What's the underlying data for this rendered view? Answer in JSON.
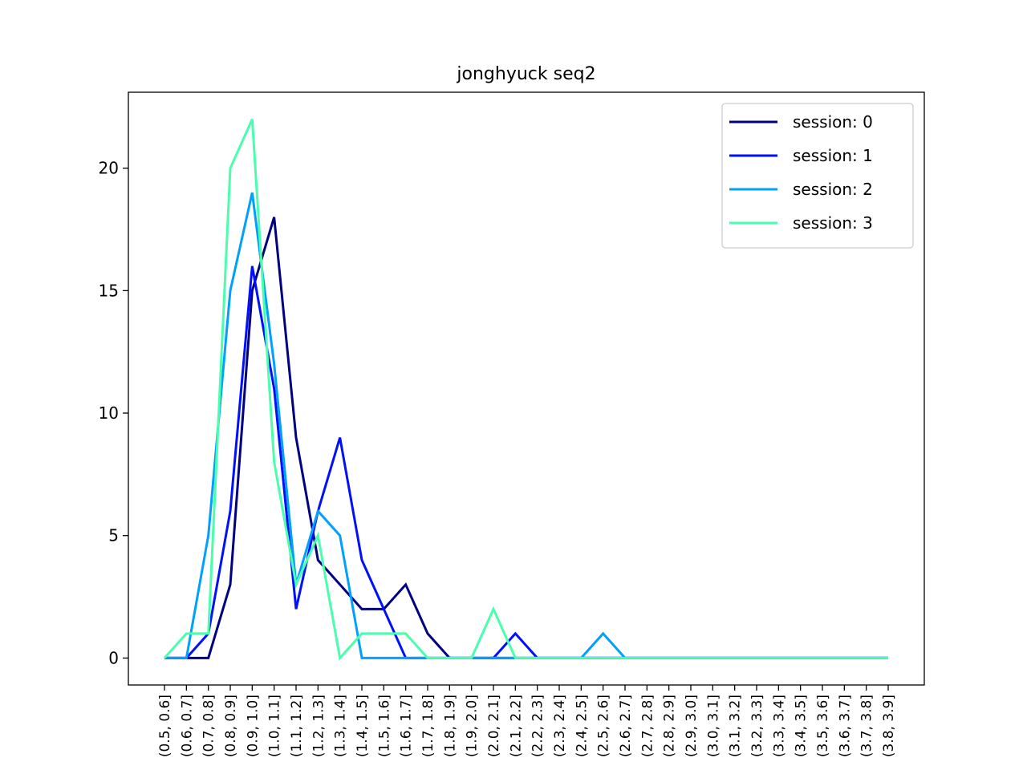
{
  "chart_data": {
    "type": "line",
    "title": "jonghyuck seq2",
    "xlabel": "",
    "ylabel": "",
    "ylim": [
      -1.1,
      23.1
    ],
    "yticks": [
      0,
      5,
      10,
      15,
      20
    ],
    "grid": false,
    "legend_position": "top-right",
    "categories": [
      "(0.5, 0.6]",
      "(0.6, 0.7]",
      "(0.7, 0.8]",
      "(0.8, 0.9]",
      "(0.9, 1.0]",
      "(1.0, 1.1]",
      "(1.1, 1.2]",
      "(1.2, 1.3]",
      "(1.3, 1.4]",
      "(1.4, 1.5]",
      "(1.5, 1.6]",
      "(1.6, 1.7]",
      "(1.7, 1.8]",
      "(1.8, 1.9]",
      "(1.9, 2.0]",
      "(2.0, 2.1]",
      "(2.1, 2.2]",
      "(2.2, 2.3]",
      "(2.3, 2.4]",
      "(2.4, 2.5]",
      "(2.5, 2.6]",
      "(2.6, 2.7]",
      "(2.7, 2.8]",
      "(2.8, 2.9]",
      "(2.9, 3.0]",
      "(3.0, 3.1]",
      "(3.1, 3.2]",
      "(3.2, 3.3]",
      "(3.3, 3.4]",
      "(3.4, 3.5]",
      "(3.5, 3.6]",
      "(3.6, 3.7]",
      "(3.7, 3.8]",
      "(3.8, 3.9]"
    ],
    "series": [
      {
        "name": "session: 0",
        "color": "#000080",
        "values": [
          0,
          0,
          0,
          3,
          15,
          18,
          9,
          4,
          3,
          2,
          2,
          3,
          1,
          0,
          0,
          0,
          0,
          0,
          0,
          0,
          0,
          0,
          0,
          0,
          0,
          0,
          0,
          0,
          0,
          0,
          0,
          0,
          0,
          0
        ]
      },
      {
        "name": "session: 1",
        "color": "#0010ff",
        "values": [
          0,
          0,
          1,
          6,
          16,
          11,
          2,
          6,
          9,
          4,
          2,
          0,
          0,
          0,
          0,
          0,
          1,
          0,
          0,
          0,
          0,
          0,
          0,
          0,
          0,
          0,
          0,
          0,
          0,
          0,
          0,
          0,
          0,
          0
        ]
      },
      {
        "name": "session: 2",
        "color": "#00a0ff",
        "values": [
          0,
          0,
          5,
          15,
          19,
          12,
          3,
          6,
          5,
          0,
          0,
          0,
          0,
          0,
          0,
          0,
          0,
          0,
          0,
          0,
          1,
          0,
          0,
          0,
          0,
          0,
          0,
          0,
          0,
          0,
          0,
          0,
          0,
          0
        ]
      },
      {
        "name": "session: 3",
        "color": "#49ffad",
        "values": [
          0,
          1,
          1,
          20,
          22,
          8,
          3,
          5,
          0,
          1,
          1,
          1,
          0,
          0,
          0,
          2,
          0,
          0,
          0,
          0,
          0,
          0,
          0,
          0,
          0,
          0,
          0,
          0,
          0,
          0,
          0,
          0,
          0,
          0
        ]
      }
    ]
  }
}
